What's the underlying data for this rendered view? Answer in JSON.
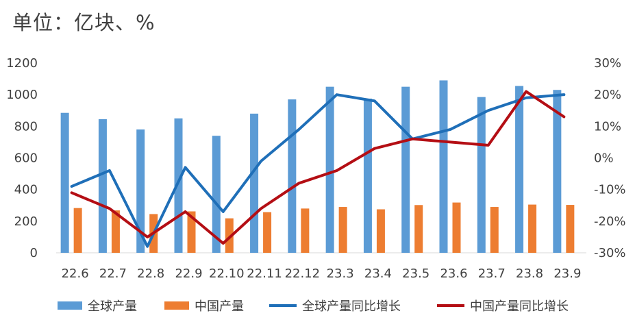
{
  "unit_label": "单位：亿块、%",
  "colors": {
    "global_output": "#5B9BD5",
    "china_output": "#ED7D31",
    "global_yoy": "#1F6FB8",
    "china_yoy": "#B40E14",
    "axis": "#D9D9D9",
    "text": "#404040"
  },
  "chart_data": {
    "type": "bar",
    "categories": [
      "22.6",
      "22.7",
      "22.8",
      "22.9",
      "22.10",
      "22.11",
      "22.12",
      "23.3",
      "23.4",
      "23.5",
      "23.6",
      "23.7",
      "23.8",
      "23.9"
    ],
    "series": [
      {
        "name": "全球产量",
        "type": "bar",
        "axis": "left",
        "values": [
          885,
          845,
          780,
          850,
          740,
          880,
          970,
          1050,
          975,
          1050,
          1090,
          985,
          1055,
          1030
        ]
      },
      {
        "name": "中国产量",
        "type": "bar",
        "axis": "left",
        "values": [
          283,
          268,
          245,
          262,
          218,
          257,
          280,
          290,
          275,
          302,
          318,
          290,
          305,
          303
        ]
      },
      {
        "name": "全球产量同比增长",
        "type": "line",
        "axis": "right",
        "values": [
          -9,
          -4,
          -28,
          -3,
          -17,
          -1,
          9,
          20,
          18,
          6,
          9,
          15,
          19,
          20
        ]
      },
      {
        "name": "中国产量同比增长",
        "type": "line",
        "axis": "right",
        "values": [
          -11,
          -16,
          -25,
          -17,
          -27,
          -16,
          -8,
          -4,
          3,
          6,
          5,
          4,
          21,
          13
        ]
      }
    ],
    "y_left": {
      "min": 0,
      "max": 1200,
      "ticks": [
        0,
        200,
        400,
        600,
        800,
        1000,
        1200
      ]
    },
    "y_right": {
      "min": -30,
      "max": 30,
      "ticks": [
        "-30%",
        "-20%",
        "-10%",
        "0%",
        "10%",
        "20%",
        "30%"
      ]
    },
    "legend_position": "bottom",
    "grid": false
  }
}
